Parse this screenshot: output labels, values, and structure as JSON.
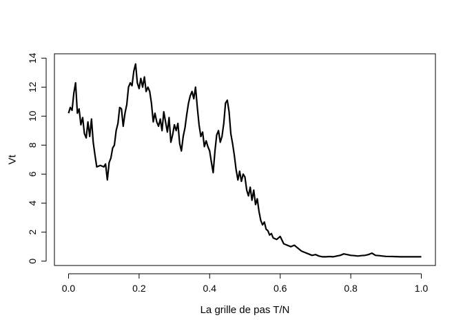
{
  "chart_data": {
    "type": "line",
    "title": "",
    "xlabel": "La grille de pas T/N",
    "ylabel": "Vt",
    "xlim": [
      -0.04,
      1.04
    ],
    "ylim": [
      -0.3,
      14.3
    ],
    "xticks": [
      0.0,
      0.2,
      0.4,
      0.6,
      0.8,
      1.0
    ],
    "xtick_labels": [
      "0.0",
      "0.2",
      "0.4",
      "0.6",
      "0.8",
      "1.0"
    ],
    "yticks": [
      0,
      2,
      4,
      6,
      8,
      10,
      12,
      14
    ],
    "ytick_labels": [
      "0",
      "2",
      "4",
      "6",
      "8",
      "10",
      "12",
      "14"
    ],
    "grid": false,
    "legend": "none",
    "line_color": "#000000",
    "series": [
      {
        "x": [
          0.0,
          0.005,
          0.01,
          0.015,
          0.02,
          0.025,
          0.03,
          0.035,
          0.04,
          0.045,
          0.05,
          0.055,
          0.06,
          0.065,
          0.07,
          0.075,
          0.08,
          0.09,
          0.1,
          0.105,
          0.11,
          0.115,
          0.12,
          0.125,
          0.13,
          0.135,
          0.14,
          0.145,
          0.15,
          0.155,
          0.16,
          0.165,
          0.17,
          0.175,
          0.18,
          0.185,
          0.19,
          0.195,
          0.2,
          0.205,
          0.21,
          0.215,
          0.22,
          0.225,
          0.23,
          0.235,
          0.24,
          0.245,
          0.25,
          0.255,
          0.26,
          0.265,
          0.27,
          0.275,
          0.28,
          0.285,
          0.29,
          0.295,
          0.3,
          0.305,
          0.31,
          0.315,
          0.32,
          0.325,
          0.33,
          0.335,
          0.34,
          0.345,
          0.35,
          0.355,
          0.36,
          0.365,
          0.37,
          0.375,
          0.38,
          0.385,
          0.39,
          0.395,
          0.4,
          0.405,
          0.41,
          0.415,
          0.42,
          0.425,
          0.43,
          0.435,
          0.44,
          0.445,
          0.45,
          0.455,
          0.46,
          0.465,
          0.47,
          0.475,
          0.48,
          0.485,
          0.49,
          0.495,
          0.5,
          0.505,
          0.51,
          0.515,
          0.52,
          0.525,
          0.53,
          0.535,
          0.54,
          0.545,
          0.55,
          0.555,
          0.56,
          0.565,
          0.57,
          0.575,
          0.58,
          0.59,
          0.6,
          0.61,
          0.62,
          0.63,
          0.64,
          0.65,
          0.66,
          0.67,
          0.68,
          0.69,
          0.7,
          0.71,
          0.72,
          0.73,
          0.74,
          0.75,
          0.76,
          0.77,
          0.78,
          0.79,
          0.8,
          0.81,
          0.82,
          0.83,
          0.84,
          0.85,
          0.86,
          0.87,
          0.88,
          0.89,
          0.9,
          0.92,
          0.94,
          0.96,
          0.98,
          1.0
        ],
        "y": [
          10.2,
          10.6,
          10.4,
          11.6,
          12.3,
          10.2,
          10.5,
          9.4,
          9.9,
          8.8,
          8.5,
          9.6,
          8.6,
          9.8,
          8.2,
          7.3,
          6.5,
          6.6,
          6.5,
          6.7,
          5.6,
          6.8,
          7.1,
          7.8,
          8.0,
          9.0,
          9.5,
          10.6,
          10.5,
          9.3,
          10.2,
          10.8,
          12.0,
          12.3,
          12.1,
          13.1,
          13.6,
          12.3,
          11.9,
          12.6,
          12.0,
          12.7,
          11.7,
          12.0,
          11.7,
          10.9,
          9.6,
          10.2,
          9.6,
          9.3,
          9.8,
          9.0,
          10.3,
          9.6,
          8.9,
          9.9,
          8.2,
          8.7,
          9.4,
          9.0,
          9.5,
          8.1,
          7.6,
          8.6,
          9.2,
          10.1,
          10.9,
          11.4,
          11.7,
          11.2,
          12.0,
          10.6,
          9.4,
          8.6,
          8.9,
          7.9,
          8.3,
          7.9,
          7.6,
          6.8,
          6.1,
          7.6,
          8.7,
          9.0,
          8.2,
          8.6,
          9.5,
          10.9,
          11.1,
          10.3,
          8.8,
          8.1,
          7.3,
          6.3,
          5.6,
          6.2,
          5.5,
          6.0,
          5.8,
          4.9,
          4.5,
          5.1,
          4.2,
          4.9,
          3.9,
          4.3,
          3.4,
          2.8,
          2.5,
          2.7,
          2.2,
          2.1,
          1.8,
          1.9,
          1.6,
          1.5,
          1.7,
          1.2,
          1.1,
          1.0,
          1.1,
          0.9,
          0.7,
          0.6,
          0.5,
          0.4,
          0.45,
          0.35,
          0.3,
          0.3,
          0.32,
          0.3,
          0.35,
          0.4,
          0.5,
          0.45,
          0.4,
          0.38,
          0.35,
          0.38,
          0.4,
          0.45,
          0.55,
          0.4,
          0.38,
          0.35,
          0.33,
          0.32,
          0.3,
          0.3,
          0.3,
          0.3
        ]
      }
    ]
  }
}
